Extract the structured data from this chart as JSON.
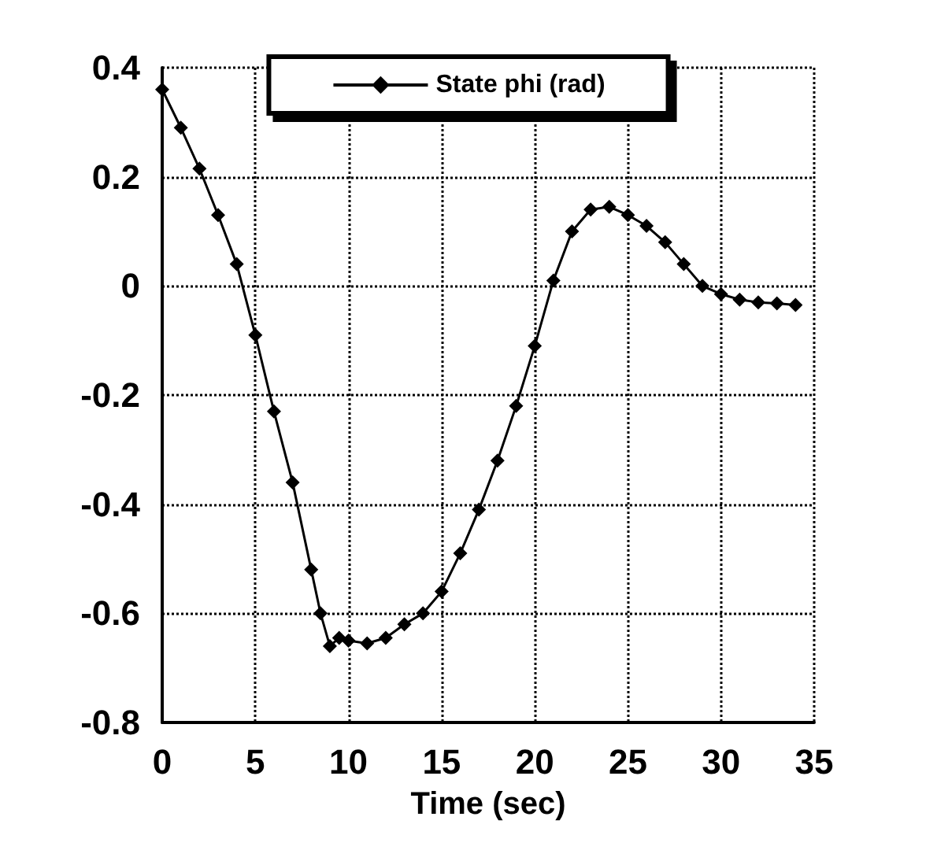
{
  "chart_data": {
    "type": "line",
    "xlabel": "Time (sec)",
    "x": [
      0,
      1,
      2,
      3,
      4,
      5,
      6,
      7,
      8,
      8.5,
      9,
      9.5,
      10,
      11,
      12,
      13,
      14,
      15,
      16,
      17,
      18,
      19,
      20,
      21,
      22,
      23,
      24,
      25,
      26,
      27,
      28,
      29,
      30,
      31,
      32,
      33,
      34
    ],
    "series": [
      {
        "name": "State phi (rad)",
        "color": "#000000",
        "values": [
          0.36,
          0.29,
          0.215,
          0.13,
          0.04,
          -0.09,
          -0.23,
          -0.36,
          -0.52,
          -0.6,
          -0.66,
          -0.645,
          -0.65,
          -0.655,
          -0.645,
          -0.62,
          -0.6,
          -0.56,
          -0.49,
          -0.41,
          -0.32,
          -0.22,
          -0.11,
          0.01,
          0.1,
          0.14,
          0.145,
          0.13,
          0.11,
          0.08,
          0.04,
          0,
          -0.015,
          -0.025,
          -0.03,
          -0.032,
          -0.035
        ]
      }
    ],
    "xlim": [
      0,
      35
    ],
    "xticks": [
      0,
      5,
      10,
      15,
      20,
      25,
      30,
      35
    ],
    "ylim": [
      -0.8,
      0.4
    ],
    "yticks": [
      -0.8,
      -0.6,
      -0.4,
      -0.2,
      0,
      0.2,
      0.4
    ],
    "grid": true,
    "legend": "top",
    "marker": "diamond",
    "line_style": "solid"
  }
}
